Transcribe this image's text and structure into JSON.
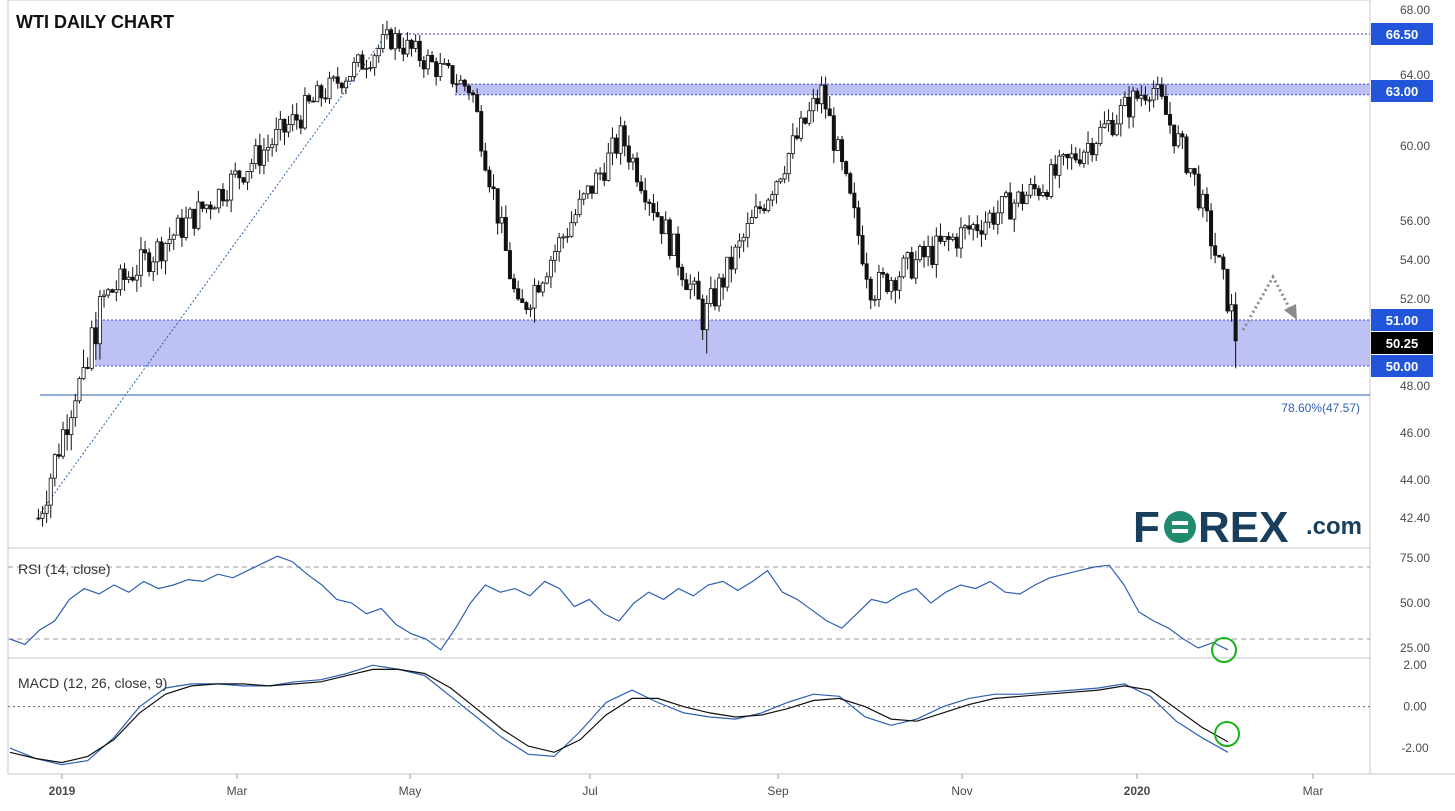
{
  "title": "WTI DAILY CHART",
  "colors": {
    "zone": "#b3b6f2",
    "zone_line": "#3b4fd1",
    "badge": "#2255d9",
    "price_badge": "#000000",
    "rsi": "#2d5fb3",
    "macd": "#2d5fb3",
    "signal": "#111111",
    "circle": "#1bb31b",
    "arrow": "#8a8a8a",
    "fib": "#2d5fb3",
    "logo_green": "#1f8a6e",
    "logo_dark": "#1a3f5c"
  },
  "logo": {
    "text_left": "F",
    "text_right": "REX",
    "suffix": ".com"
  },
  "chart_data": [
    {
      "type": "candlestick",
      "title": "WTI DAILY CHART",
      "x_tick_labels": [
        "2019",
        "Mar",
        "May",
        "Jul",
        "Sep",
        "Nov",
        "2020",
        "Mar"
      ],
      "y_tick_labels": [
        "68.00",
        "64.00",
        "60.00",
        "56.00",
        "54.00",
        "52.00",
        "48.00",
        "46.00",
        "44.00",
        "42.40"
      ],
      "ylim": [
        42.0,
        68.3
      ],
      "price_badges": [
        {
          "label": "66.50",
          "value": 66.5,
          "style": "blue"
        },
        {
          "label": "63.00",
          "value": 63.0,
          "style": "blue"
        },
        {
          "label": "51.00",
          "value": 51.0,
          "style": "blue"
        },
        {
          "label": "50.25",
          "value": 50.25,
          "style": "black"
        },
        {
          "label": "50.00",
          "value": 50.0,
          "style": "blue"
        }
      ],
      "zones": [
        {
          "low": 62.7,
          "high": 63.35
        },
        {
          "low": 50.0,
          "high": 51.0
        }
      ],
      "fib_level": {
        "label": "78.60%(47.57)",
        "value": 47.57
      },
      "resistance_line": 66.5,
      "trend_line": {
        "from": [
          "2019-01-01",
          42.4
        ],
        "to": [
          "2019-04-23",
          66.5
        ]
      },
      "key_points": [
        {
          "date": "2018-12-24",
          "close": 42.4
        },
        {
          "date": "2019-01-15",
          "close": 52.0
        },
        {
          "date": "2019-02-20",
          "close": 57.0
        },
        {
          "date": "2019-04-23",
          "close": 66.3
        },
        {
          "date": "2019-05-20",
          "close": 63.0
        },
        {
          "date": "2019-06-05",
          "close": 51.2
        },
        {
          "date": "2019-07-10",
          "close": 60.5
        },
        {
          "date": "2019-08-07",
          "close": 51.1
        },
        {
          "date": "2019-09-16",
          "close": 62.9
        },
        {
          "date": "2019-10-03",
          "close": 52.5
        },
        {
          "date": "2019-12-01",
          "close": 58.0
        },
        {
          "date": "2020-01-06",
          "close": 63.3
        },
        {
          "date": "2020-01-20",
          "close": 58.5
        },
        {
          "date": "2020-02-04",
          "close": 50.25
        }
      ]
    },
    {
      "type": "line",
      "title": "RSI (14, close)",
      "y_tick_labels": [
        "75.00",
        "50.00",
        "25.00"
      ],
      "ylim": [
        20,
        80
      ],
      "reference_lines": [
        70,
        30
      ],
      "series": [
        {
          "values": [
            30,
            27,
            35,
            40,
            52,
            58,
            55,
            60,
            56,
            62,
            58,
            60,
            63,
            62,
            66,
            64,
            68,
            72,
            76,
            73,
            66,
            60,
            52,
            50,
            44,
            47,
            38,
            33,
            30,
            24,
            36,
            50,
            60,
            56,
            58,
            54,
            62,
            58,
            48,
            52,
            44,
            40,
            50,
            56,
            52,
            58,
            54,
            60,
            62,
            57,
            62,
            68,
            56,
            52,
            46,
            40,
            36,
            44,
            52,
            50,
            55,
            58,
            50,
            56,
            60,
            58,
            62,
            56,
            55,
            60,
            64,
            66,
            68,
            70,
            71,
            60,
            45,
            40,
            36,
            30,
            25,
            28,
            24
          ]
        }
      ]
    },
    {
      "type": "line",
      "title": "MACD (12, 26, close, 9)",
      "y_tick_labels": [
        "2.00",
        "0.00",
        "-2.00"
      ],
      "ylim": [
        -3.2,
        2.3
      ],
      "reference_lines": [
        0
      ],
      "series": [
        {
          "name": "MACD",
          "values": [
            -2.0,
            -2.5,
            -2.8,
            -2.6,
            -1.5,
            0.0,
            0.9,
            1.1,
            1.1,
            1.0,
            1.0,
            1.2,
            1.3,
            1.6,
            2.0,
            1.8,
            1.5,
            0.5,
            -0.5,
            -1.5,
            -2.3,
            -2.4,
            -1.2,
            0.2,
            0.8,
            0.2,
            -0.3,
            -0.5,
            -0.6,
            -0.3,
            0.2,
            0.6,
            0.5,
            -0.5,
            -0.9,
            -0.6,
            0.0,
            0.4,
            0.6,
            0.6,
            0.7,
            0.8,
            0.9,
            1.1,
            0.5,
            -0.7,
            -1.5,
            -2.2
          ]
        },
        {
          "name": "Signal",
          "values": [
            -2.2,
            -2.5,
            -2.7,
            -2.4,
            -1.6,
            -0.3,
            0.6,
            1.0,
            1.1,
            1.1,
            1.0,
            1.1,
            1.2,
            1.5,
            1.8,
            1.8,
            1.6,
            0.9,
            -0.1,
            -1.1,
            -1.9,
            -2.2,
            -1.6,
            -0.4,
            0.4,
            0.4,
            0.0,
            -0.3,
            -0.5,
            -0.4,
            -0.1,
            0.3,
            0.4,
            0.0,
            -0.6,
            -0.7,
            -0.3,
            0.1,
            0.4,
            0.5,
            0.6,
            0.7,
            0.8,
            1.0,
            0.8,
            -0.1,
            -1.0,
            -1.7
          ]
        }
      ]
    }
  ]
}
